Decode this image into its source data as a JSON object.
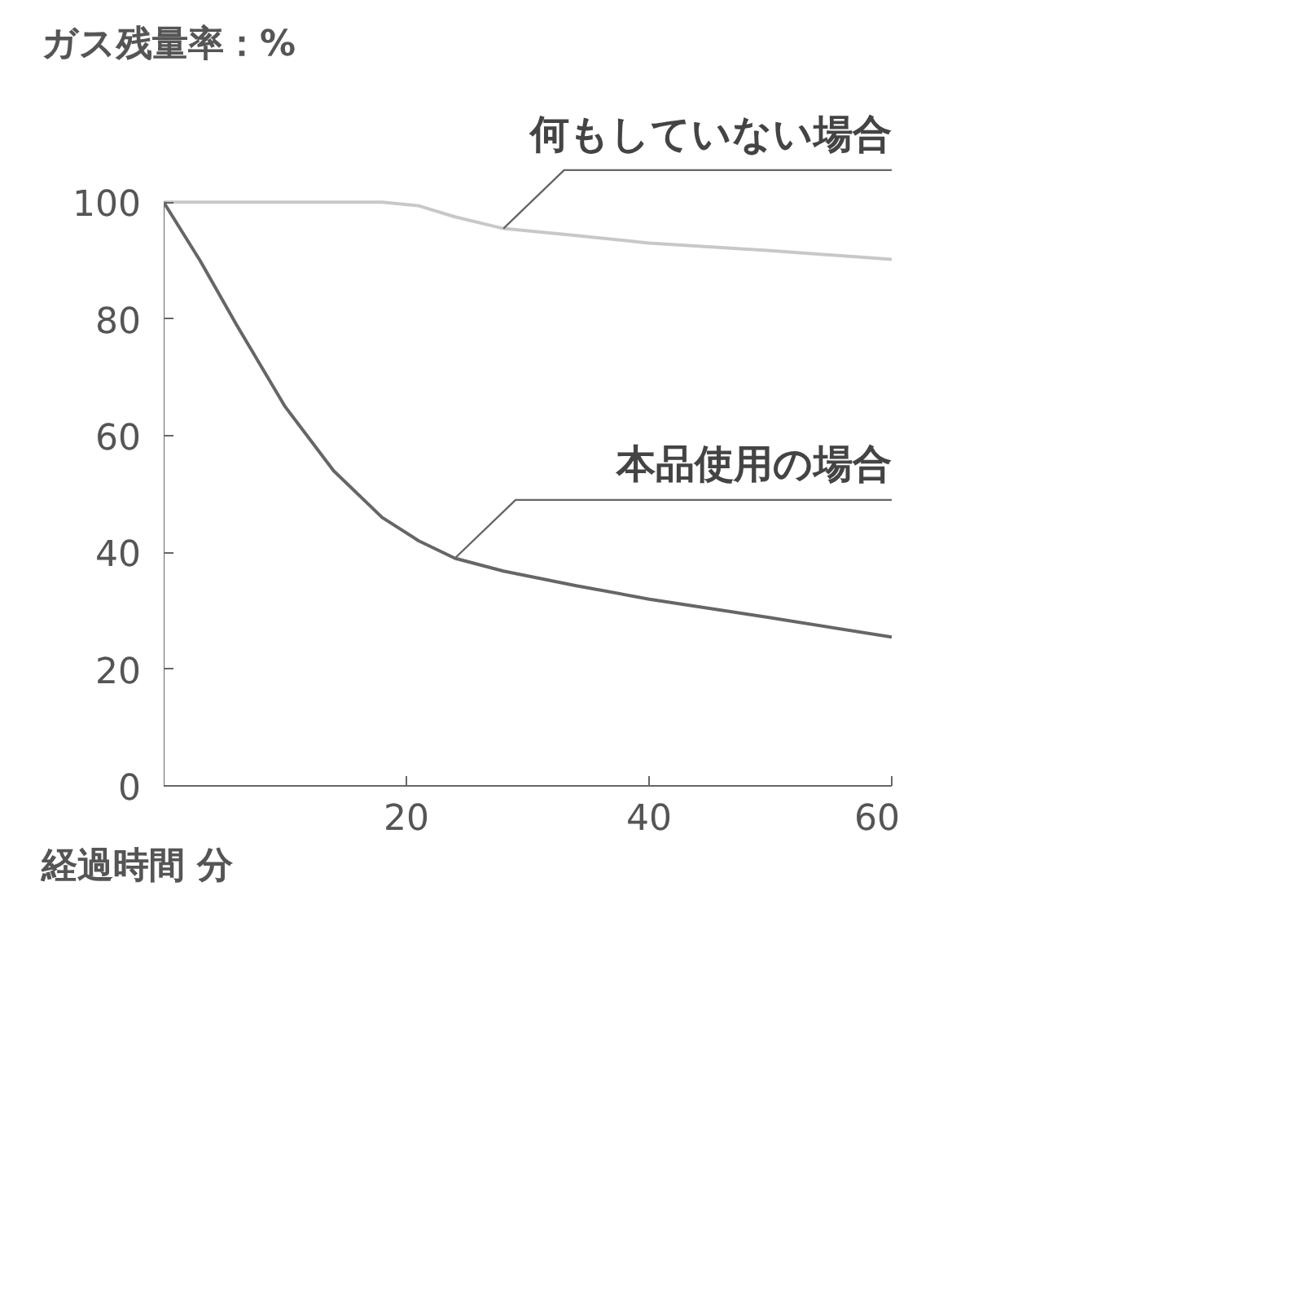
{
  "chart_data": {
    "type": "line",
    "xlabel": "経過時間 分",
    "ylabel": "ガス残量率：%",
    "xlim": [
      0,
      60
    ],
    "ylim": [
      0,
      100
    ],
    "xticks": [
      20,
      40,
      60
    ],
    "yticks": [
      0,
      20,
      40,
      60,
      80,
      100
    ],
    "grid": false,
    "marker": "none",
    "line_style": "solid",
    "series": [
      {
        "color": "#c8c8c8",
        "x": [
          0,
          5,
          12,
          18,
          21,
          24,
          28,
          34,
          40,
          50,
          60
        ],
        "values": [
          100,
          100,
          100,
          100,
          99.4,
          97.5,
          95.5,
          94.3,
          93,
          91.7,
          90.2
        ]
      },
      {
        "color": "#666666",
        "x": [
          0,
          3,
          6,
          10,
          14,
          18,
          21,
          24,
          28,
          34,
          40,
          50,
          60
        ],
        "values": [
          100,
          90,
          79,
          65,
          54,
          46,
          42,
          39,
          36.8,
          34.3,
          32,
          28.8,
          25.5
        ]
      }
    ],
    "annotations": [
      {
        "text": "何もしていない場合",
        "x": 28,
        "y": 95.5
      },
      {
        "text": "本品使用の場合",
        "x": 24,
        "y": 39
      }
    ]
  }
}
